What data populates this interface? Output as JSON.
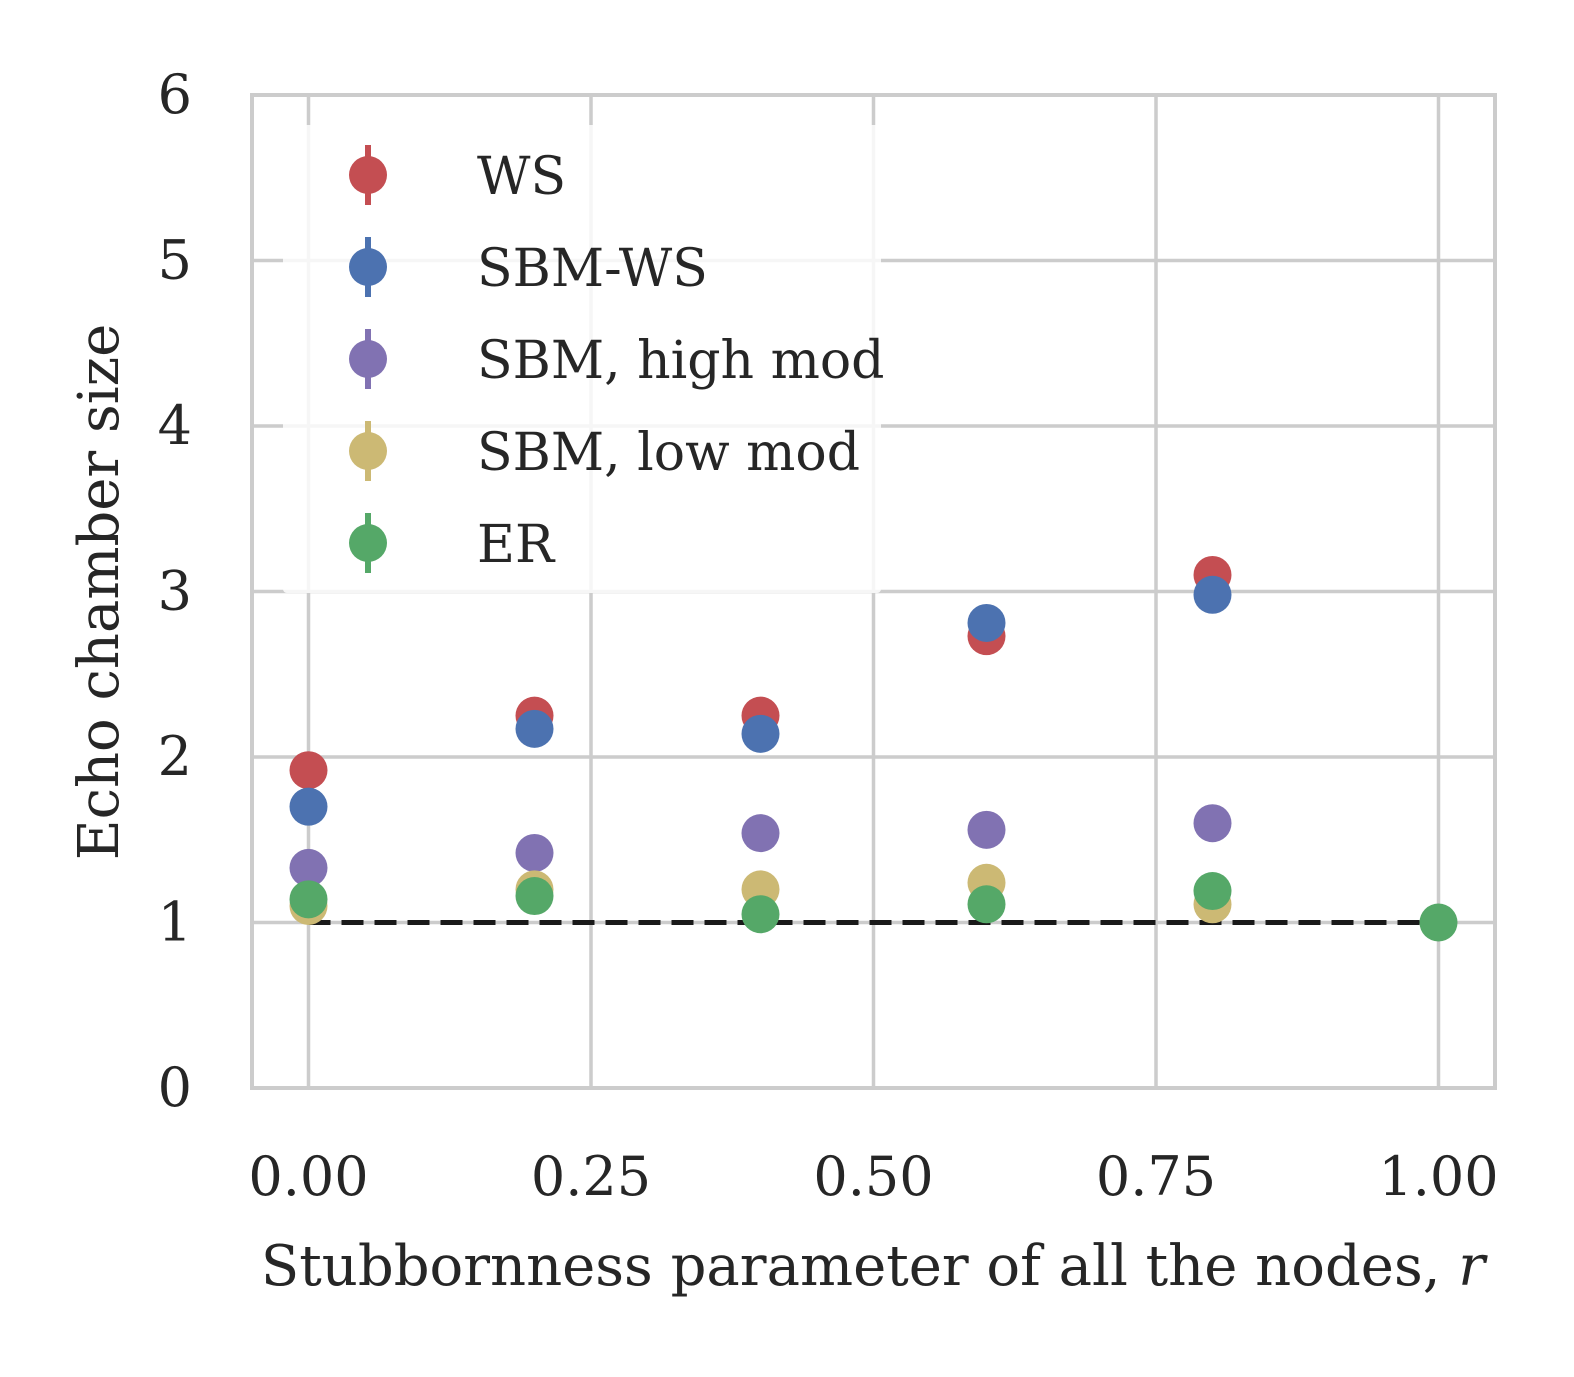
{
  "chart_data": {
    "type": "scatter",
    "title": "",
    "xlabel": "Stubbornness parameter of all the nodes, ",
    "xlabel_var": "r",
    "ylabel": "Echo chamber size",
    "xlim": [
      -0.05,
      1.05
    ],
    "ylim": [
      0,
      6
    ],
    "xticks": [
      0.0,
      0.25,
      0.5,
      0.75,
      1.0
    ],
    "xtick_labels": [
      "0.00",
      "0.25",
      "0.50",
      "0.75",
      "1.00"
    ],
    "yticks": [
      0,
      1,
      2,
      3,
      4,
      5,
      6
    ],
    "ytick_labels": [
      "0",
      "1",
      "2",
      "3",
      "4",
      "5",
      "6"
    ],
    "grid": true,
    "legend_position": "top-left",
    "reference_line": {
      "y": 1,
      "style": "dashed",
      "color": "#1a1a1a"
    },
    "series": [
      {
        "name": "WS",
        "color": "#C44E52",
        "x": [
          0.0,
          0.2,
          0.4,
          0.6,
          0.8
        ],
        "y": [
          1.92,
          2.25,
          2.25,
          2.73,
          3.1
        ]
      },
      {
        "name": "SBM-WS",
        "color": "#4C72B0",
        "x": [
          0.0,
          0.2,
          0.4,
          0.6,
          0.8
        ],
        "y": [
          1.7,
          2.17,
          2.14,
          2.81,
          2.98
        ]
      },
      {
        "name": "SBM, high mod",
        "color": "#8172B2",
        "x": [
          0.0,
          0.2,
          0.4,
          0.6,
          0.8
        ],
        "y": [
          1.33,
          1.42,
          1.54,
          1.56,
          1.6
        ]
      },
      {
        "name": "SBM, low mod",
        "color": "#CCB974",
        "x": [
          0.0,
          0.2,
          0.4,
          0.6,
          0.8
        ],
        "y": [
          1.1,
          1.2,
          1.2,
          1.24,
          1.11
        ]
      },
      {
        "name": "ER",
        "color": "#55A868",
        "x": [
          0.0,
          0.2,
          0.4,
          0.6,
          0.8,
          1.0
        ],
        "y": [
          1.14,
          1.16,
          1.05,
          1.11,
          1.19,
          1.0
        ]
      }
    ]
  }
}
